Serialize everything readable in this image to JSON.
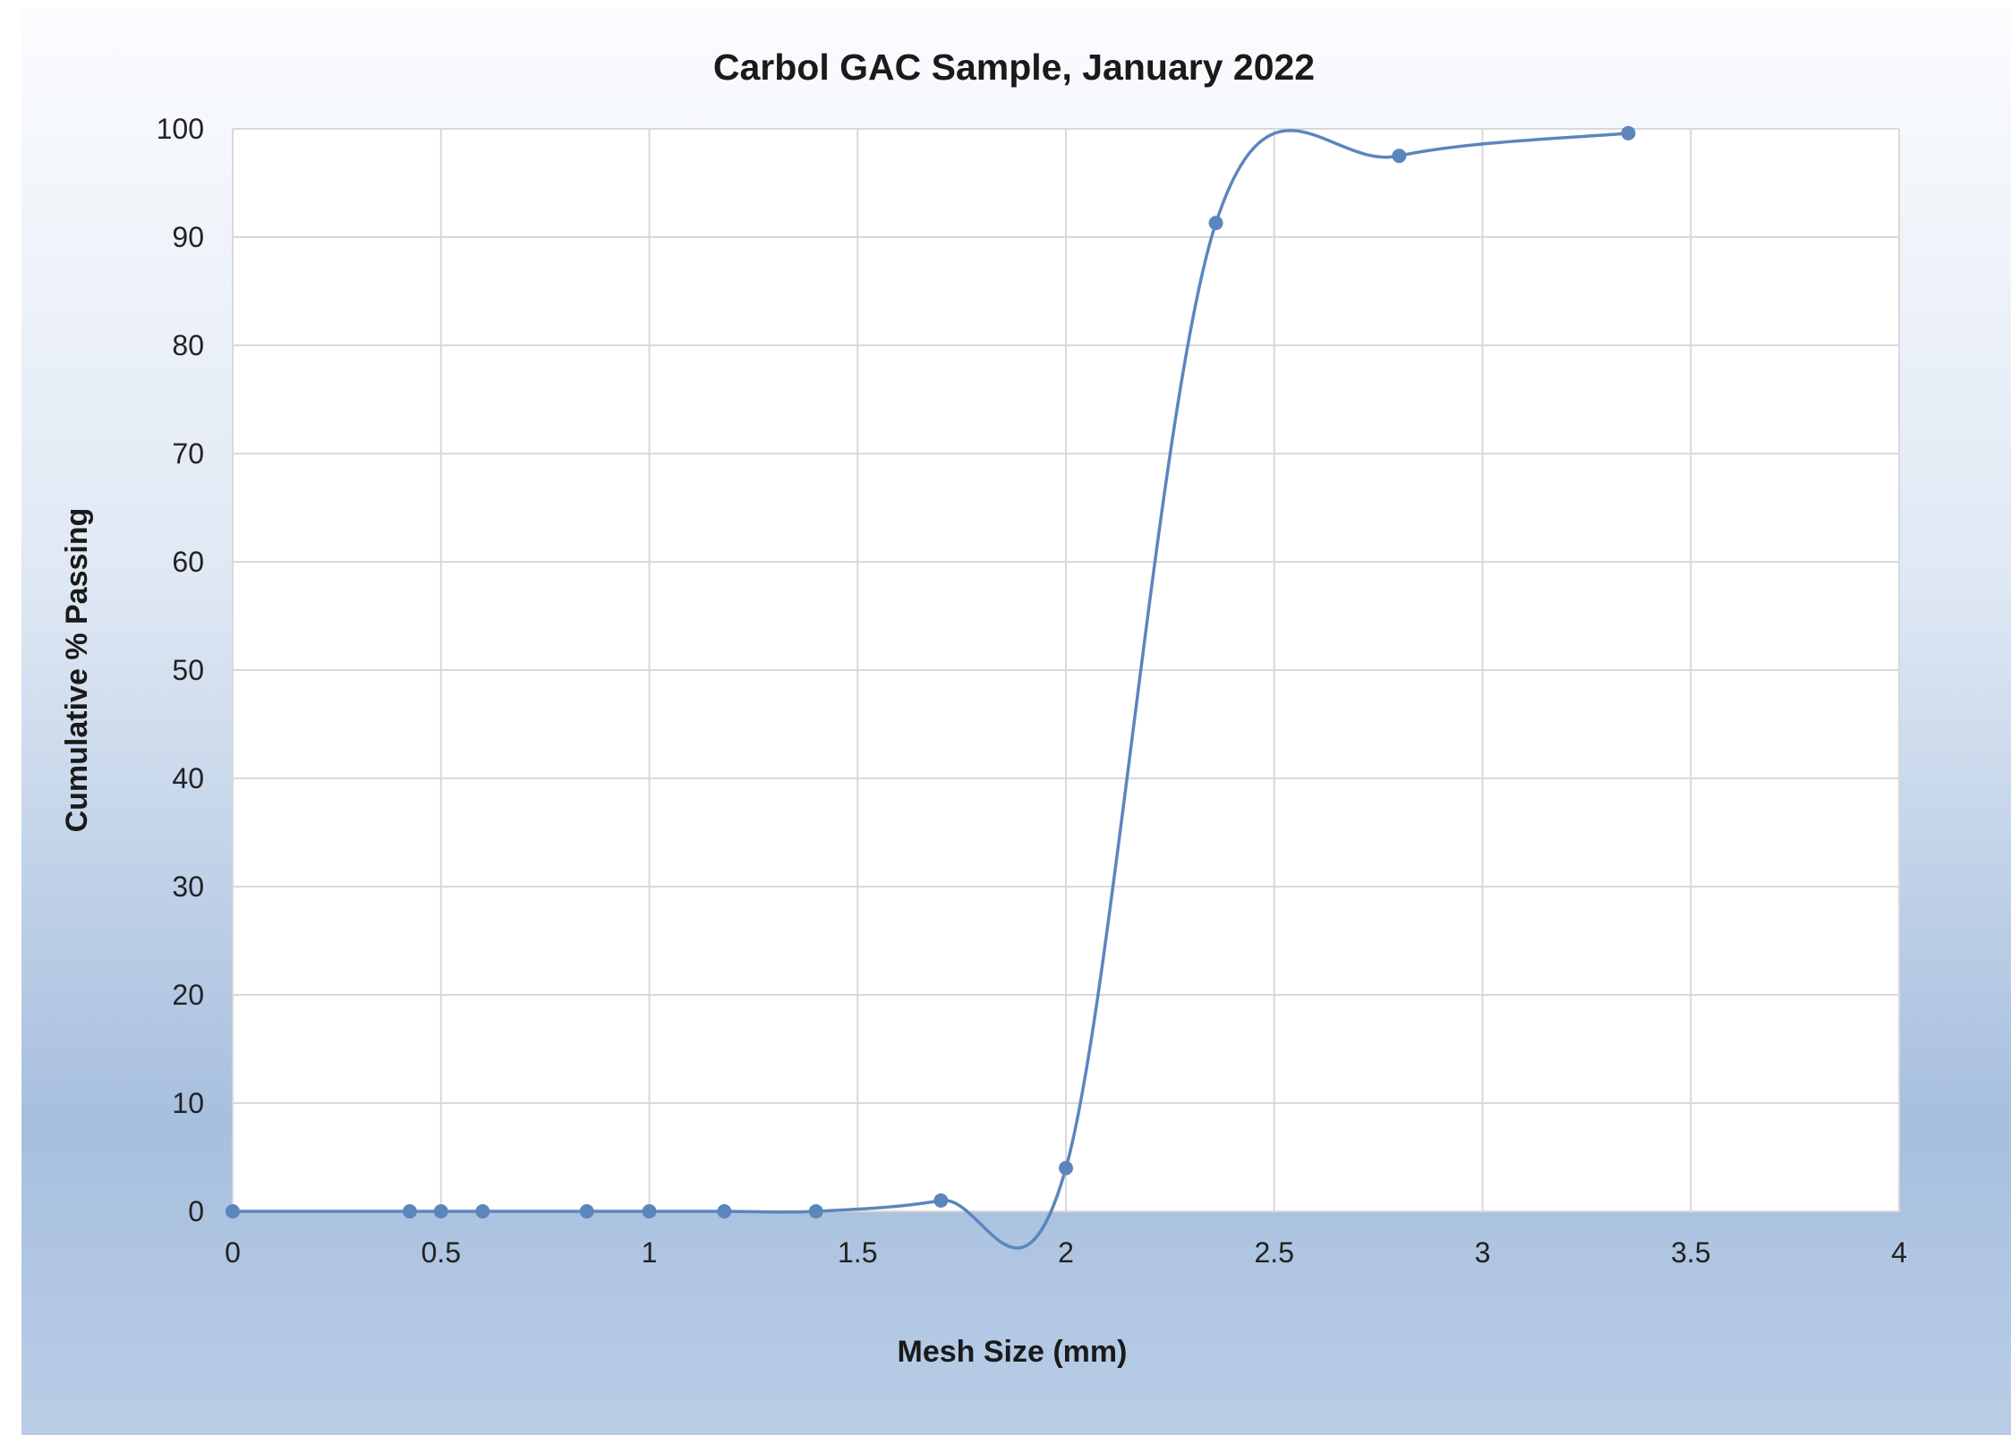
{
  "chart_data": {
    "type": "scatter",
    "title": "Carbol GAC Sample, January 2022",
    "xlabel": "Mesh Size (mm)",
    "ylabel": "Cumulative % Passing",
    "xlim": [
      0,
      4
    ],
    "ylim": [
      0,
      100
    ],
    "x_ticks": [
      "0",
      "0.5",
      "1",
      "1.5",
      "2",
      "2.5",
      "3",
      "3.5",
      "4"
    ],
    "y_ticks": [
      "0",
      "10",
      "20",
      "30",
      "40",
      "50",
      "60",
      "70",
      "80",
      "90",
      "100"
    ],
    "grid": true,
    "smooth_line": true,
    "series_color": "#5b86bd",
    "grid_color": "#d9d9d9",
    "series": [
      {
        "x": [
          0,
          0.425,
          0.5,
          0.6,
          0.85,
          1.0,
          1.18,
          1.4,
          1.7,
          2.0,
          2.36,
          2.8,
          3.35
        ],
        "y": [
          0,
          0,
          0,
          0,
          0,
          0,
          0,
          0,
          1,
          4,
          91.3,
          97.5,
          99.6
        ]
      }
    ]
  }
}
